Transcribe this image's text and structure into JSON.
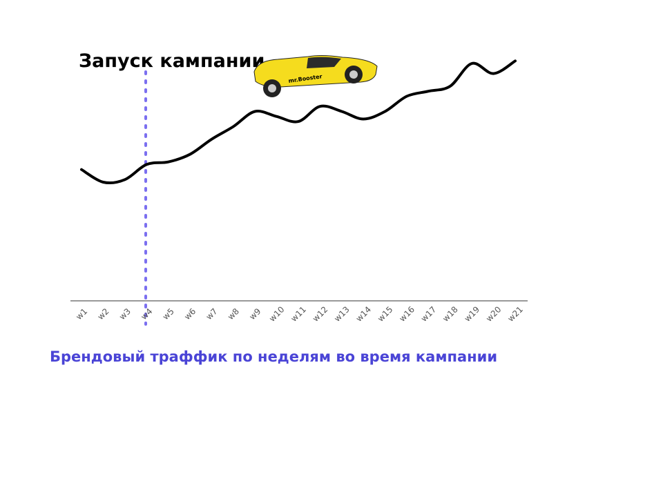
{
  "chart_data": {
    "type": "line",
    "x": [
      "w1",
      "w2",
      "w3",
      "w4",
      "w5",
      "w6",
      "w7",
      "w8",
      "w9",
      "w10",
      "w11",
      "w12",
      "w13",
      "w14",
      "w15",
      "w16",
      "w17",
      "w18",
      "w19",
      "w20",
      "w21"
    ],
    "values": [
      52,
      47,
      48,
      54,
      55,
      58,
      64,
      69,
      75,
      73,
      71,
      77,
      75,
      72,
      75,
      81,
      83,
      85,
      94,
      90,
      95
    ],
    "ylim": [
      0,
      100
    ],
    "grid": false,
    "line_color": "#000000",
    "axis_color": "#999999",
    "annotation": {
      "text": "Запуск кампании",
      "at": "w4",
      "line_style": "dotted",
      "line_color": "#7b6ff0"
    },
    "car": {
      "brand": "mr.Booster",
      "body_color": "#f5dc1e",
      "at": "w10"
    }
  },
  "caption": {
    "text": "Брендовый траффик по неделям во время кампании",
    "color": "#4a44d6"
  }
}
